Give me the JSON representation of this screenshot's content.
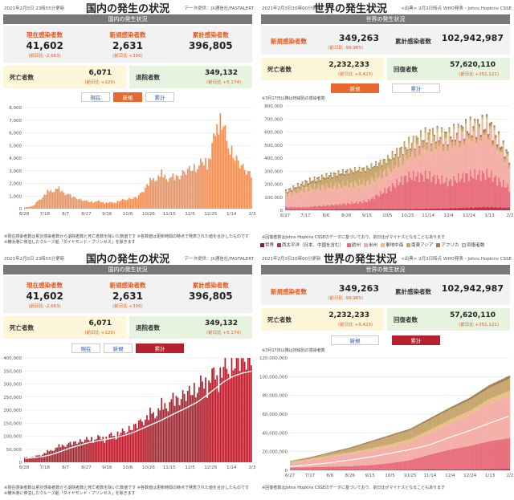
{
  "japan_top": {
    "date": "2021年2月3日 23時55分更新",
    "title": "国内の発生の状況",
    "credit": "データ提供：JX通信社/FASTALERT",
    "section": "国内の発生状況",
    "stats": [
      {
        "label": "現在感染者数",
        "value": "41,602",
        "sub": "(前日比 -2,663)"
      },
      {
        "label": "新規感染者数",
        "value": "2,631",
        "sub": "(前日比 +306)"
      },
      {
        "label": "累計感染者数",
        "value": "396,805",
        "sub": ""
      }
    ],
    "deaths": {
      "label": "死亡者数",
      "value": "6,071",
      "sub": "(前日比 +120)"
    },
    "recovered": {
      "label": "退院者数",
      "value": "349,132",
      "sub": "(前日比 +5,174)"
    },
    "tabs": [
      "現在",
      "新規",
      "累計"
    ],
    "active_tab": 1,
    "note": "※現在感染者数は累計感染者数から退院者数と死亡者数を除いた数値です ※各数値は更新時間の時点で発表された値を合計したものです ※横浜港に停泊したクルーズ船「ダイヤモンド・プリンセス」を除きます"
  },
  "world_top": {
    "date": "2021年2月3日10時00分更新",
    "title": "世界の発生状況",
    "credit": "<出典> 2月2日時点 WHO発表・Johns Hopkins CSSE",
    "section": "世界の発生状況",
    "new_cases": {
      "label": "新規感染者数",
      "value": "349,263",
      "sub": "(前日比 -99,965)"
    },
    "total_cases": {
      "label": "累計感染者数",
      "value": "102,942,987",
      "sub": ""
    },
    "deaths": {
      "label": "死亡者数",
      "value": "2,232,233",
      "sub": "(前日比 +9,423)"
    },
    "recovered": {
      "label": "回復者数",
      "value": "57,620,110",
      "sub": "(前日比 +351,121)"
    },
    "tabs": [
      "新規",
      "累計"
    ],
    "active_tab": 0,
    "chart_note": "※3月17日以降は地域別の感染者数",
    "note": "※回復者数はJohns Hopkins CSSEのデータに基づいており、前日比がマイナスとなることもあります",
    "legend": [
      "世界",
      "西太平洋（日本、中国を含む）",
      "欧州",
      "米州",
      "東地中海",
      "南東アジア",
      "アフリカ"
    ],
    "legend_extra": "回復者数"
  },
  "japan_bottom": {
    "date": "2021年2月3日 23時55分更新",
    "title": "国内の発生の状況",
    "credit": "データ提供：JX通信社/FASTALERT",
    "section": "国内の発生状況",
    "stats": [
      {
        "label": "現在感染者数",
        "value": "41,602",
        "sub": "(前日比 -2,663)"
      },
      {
        "label": "新規感染者数",
        "value": "2,631",
        "sub": "(前日比 +306)"
      },
      {
        "label": "累計感染者数",
        "value": "396,805",
        "sub": ""
      }
    ],
    "deaths": {
      "label": "死亡者数",
      "value": "6,071",
      "sub": "(前日比 +120)"
    },
    "recovered": {
      "label": "退院者数",
      "value": "349,132",
      "sub": "(前日比 +5,174)"
    },
    "tabs": [
      "現在",
      "新規",
      "累計"
    ],
    "active_tab": 2,
    "note": "※現在感染者数は累計感染者数から退院者数と死亡者数を除いた数値です ※各数値は更新時間の時点で発表された値を合計したものです ※横浜港に停泊したクルーズ船「ダイヤモンド・プリンセス」を除きます"
  },
  "world_bottom": {
    "date": "2021年2月3日10時00分更新",
    "title": "世界の発生状況",
    "credit": "<出典> 2月2日時点 WHO発表・Johns Hopkins CSSE",
    "section": "世界の発生状況",
    "new_cases": {
      "label": "新規感染者数",
      "value": "349,263",
      "sub": "(前日比 -99,965)"
    },
    "total_cases": {
      "label": "累計感染者数",
      "value": "102,942,987",
      "sub": ""
    },
    "deaths": {
      "label": "死亡者数",
      "value": "2,232,233",
      "sub": "(前日比 +9,423)"
    },
    "recovered": {
      "label": "回復者数",
      "value": "57,620,110",
      "sub": "(前日比 +351,121)"
    },
    "tabs": [
      "新規",
      "累計"
    ],
    "active_tab": 1,
    "chart_note": "※3月17日以降は地域別の感染者数",
    "note": "※回復者数はJohns Hopkins CSSEのデータに基づいており、前日比がマイナスとなることもあります"
  },
  "colors": {
    "japan_bar": "#f0915a",
    "japan_bar_dark": "#b3222e",
    "japan_line": "#ffffff",
    "world_colors": [
      "#8b1a2b",
      "#c4304a",
      "#e8707f",
      "#f4b0a8",
      "#e8c088",
      "#c8a870",
      "#a08050"
    ],
    "orange": "#e05a1e"
  },
  "chart_data": [
    {
      "type": "bar",
      "x_ticks": [
        "6/28",
        "7/18",
        "8/7",
        "8/27",
        "9/16",
        "10/6",
        "10/26",
        "11/15",
        "12/5",
        "12/25",
        "1/14",
        "2/3"
      ],
      "y_ticks": [
        0,
        1000,
        2000,
        3000,
        4000,
        5000,
        6000,
        7000,
        8000
      ],
      "ylim": [
        0,
        8000
      ],
      "series": [
        {
          "values": [
            100,
            200,
            800,
            1300,
            1500,
            1200,
            900,
            700,
            550,
            600,
            500,
            500,
            700,
            800,
            900,
            1700,
            2300,
            2500,
            2300,
            2500,
            3000,
            3300,
            3700,
            4300,
            7800,
            5500,
            4000,
            3200,
            2631
          ]
        }
      ]
    },
    {
      "type": "area",
      "x_ticks": [
        "6/27",
        "7/17",
        "8/6",
        "8/26",
        "9/15",
        "10/5",
        "10/25",
        "11/14",
        "12/4",
        "12/24",
        "1/13",
        "2/2"
      ],
      "y_ticks": [
        0,
        100000,
        200000,
        300000,
        400000,
        500000,
        600000,
        700000,
        800000
      ],
      "ylim": [
        0,
        800000
      ],
      "series": [
        {
          "name": "西太平洋（日本、中国を含む）",
          "values": [
            5000,
            5000,
            8000,
            10000,
            10000,
            10000,
            10000,
            12000,
            15000,
            20000,
            25000,
            20000
          ]
        },
        {
          "name": "欧州",
          "values": [
            20000,
            20000,
            30000,
            40000,
            60000,
            150000,
            250000,
            250000,
            200000,
            250000,
            250000,
            150000
          ]
        },
        {
          "name": "米州",
          "values": [
            80000,
            130000,
            130000,
            130000,
            120000,
            120000,
            150000,
            230000,
            280000,
            300000,
            320000,
            180000
          ]
        },
        {
          "name": "東地中海",
          "values": [
            15000,
            15000,
            15000,
            20000,
            25000,
            25000,
            30000,
            35000,
            30000,
            25000,
            25000,
            25000
          ]
        },
        {
          "name": "南東アジア",
          "values": [
            20000,
            40000,
            70000,
            90000,
            100000,
            80000,
            55000,
            45000,
            35000,
            25000,
            20000,
            20000
          ]
        },
        {
          "name": "アフリカ",
          "values": [
            8000,
            10000,
            12000,
            10000,
            8000,
            7000,
            8000,
            10000,
            12000,
            15000,
            20000,
            15000
          ]
        }
      ]
    },
    {
      "type": "bar",
      "x_ticks": [
        "6/28",
        "7/18",
        "8/7",
        "8/27",
        "9/16",
        "10/6",
        "10/26",
        "11/15",
        "12/5",
        "12/25",
        "1/14",
        "2/3"
      ],
      "y_ticks": [
        0,
        50000,
        100000,
        150000,
        200000,
        250000,
        300000,
        350000,
        400000
      ],
      "ylim": [
        0,
        400000
      ],
      "series": [
        {
          "values": [
            18000,
            20000,
            30000,
            45000,
            60000,
            70000,
            80000,
            90000,
            95000,
            100000,
            110000,
            120000,
            135000,
            155000,
            175000,
            195000,
            220000,
            240000,
            265000,
            290000,
            320000,
            345000,
            365000,
            380000,
            390000,
            396805
          ]
        }
      ],
      "line": [
        15000,
        18000,
        22000,
        30000,
        42000,
        55000,
        65000,
        75000,
        82000,
        88000,
        95000,
        103000,
        115000,
        130000,
        145000,
        160000,
        178000,
        195000,
        212000,
        230000,
        255000,
        282000,
        310000,
        330000,
        342000,
        349132
      ]
    },
    {
      "type": "area",
      "x_ticks": [
        "6/27",
        "7/17",
        "8/6",
        "8/26",
        "9/15",
        "10/5",
        "10/25",
        "11/14",
        "12/4",
        "12/24",
        "1/13",
        "2/2"
      ],
      "y_ticks": [
        0,
        20000000,
        40000000,
        60000000,
        80000000,
        100000000,
        120000000
      ],
      "ylim": [
        0,
        120000000
      ],
      "series": [
        {
          "name": "西太平洋（日本、中国を含む）",
          "values": [
            300000,
            350000,
            400000,
            450000,
            550000,
            650000,
            750000,
            850000,
            950000,
            1050000,
            1200000,
            1300000
          ]
        },
        {
          "name": "欧州",
          "values": [
            2700000,
            3000000,
            3500000,
            4000000,
            5000000,
            7000000,
            10000000,
            16000000,
            21000000,
            25000000,
            30000000,
            33000000
          ]
        },
        {
          "name": "米州",
          "values": [
            5000000,
            7500000,
            10500000,
            13000000,
            15500000,
            17500000,
            19500000,
            23000000,
            28000000,
            33000000,
            40000000,
            45000000
          ]
        },
        {
          "name": "東地中海",
          "values": [
            1000000,
            1300000,
            1600000,
            1800000,
            2200000,
            2600000,
            3000000,
            3500000,
            4000000,
            4500000,
            5000000,
            5500000
          ]
        },
        {
          "name": "南東アジア",
          "values": [
            600000,
            1300000,
            2400000,
            4000000,
            6500000,
            8500000,
            9500000,
            10500000,
            11000000,
            11500000,
            12000000,
            13000000
          ]
        },
        {
          "name": "アフリカ",
          "values": [
            400000,
            650000,
            900000,
            1100000,
            1300000,
            1400000,
            1500000,
            1700000,
            1900000,
            2300000,
            2800000,
            3200000
          ]
        }
      ],
      "line": [
        4000000,
        6000000,
        8000000,
        11000000,
        14000000,
        18000000,
        22000000,
        27000000,
        35000000,
        42000000,
        50000000,
        57620110
      ]
    }
  ]
}
